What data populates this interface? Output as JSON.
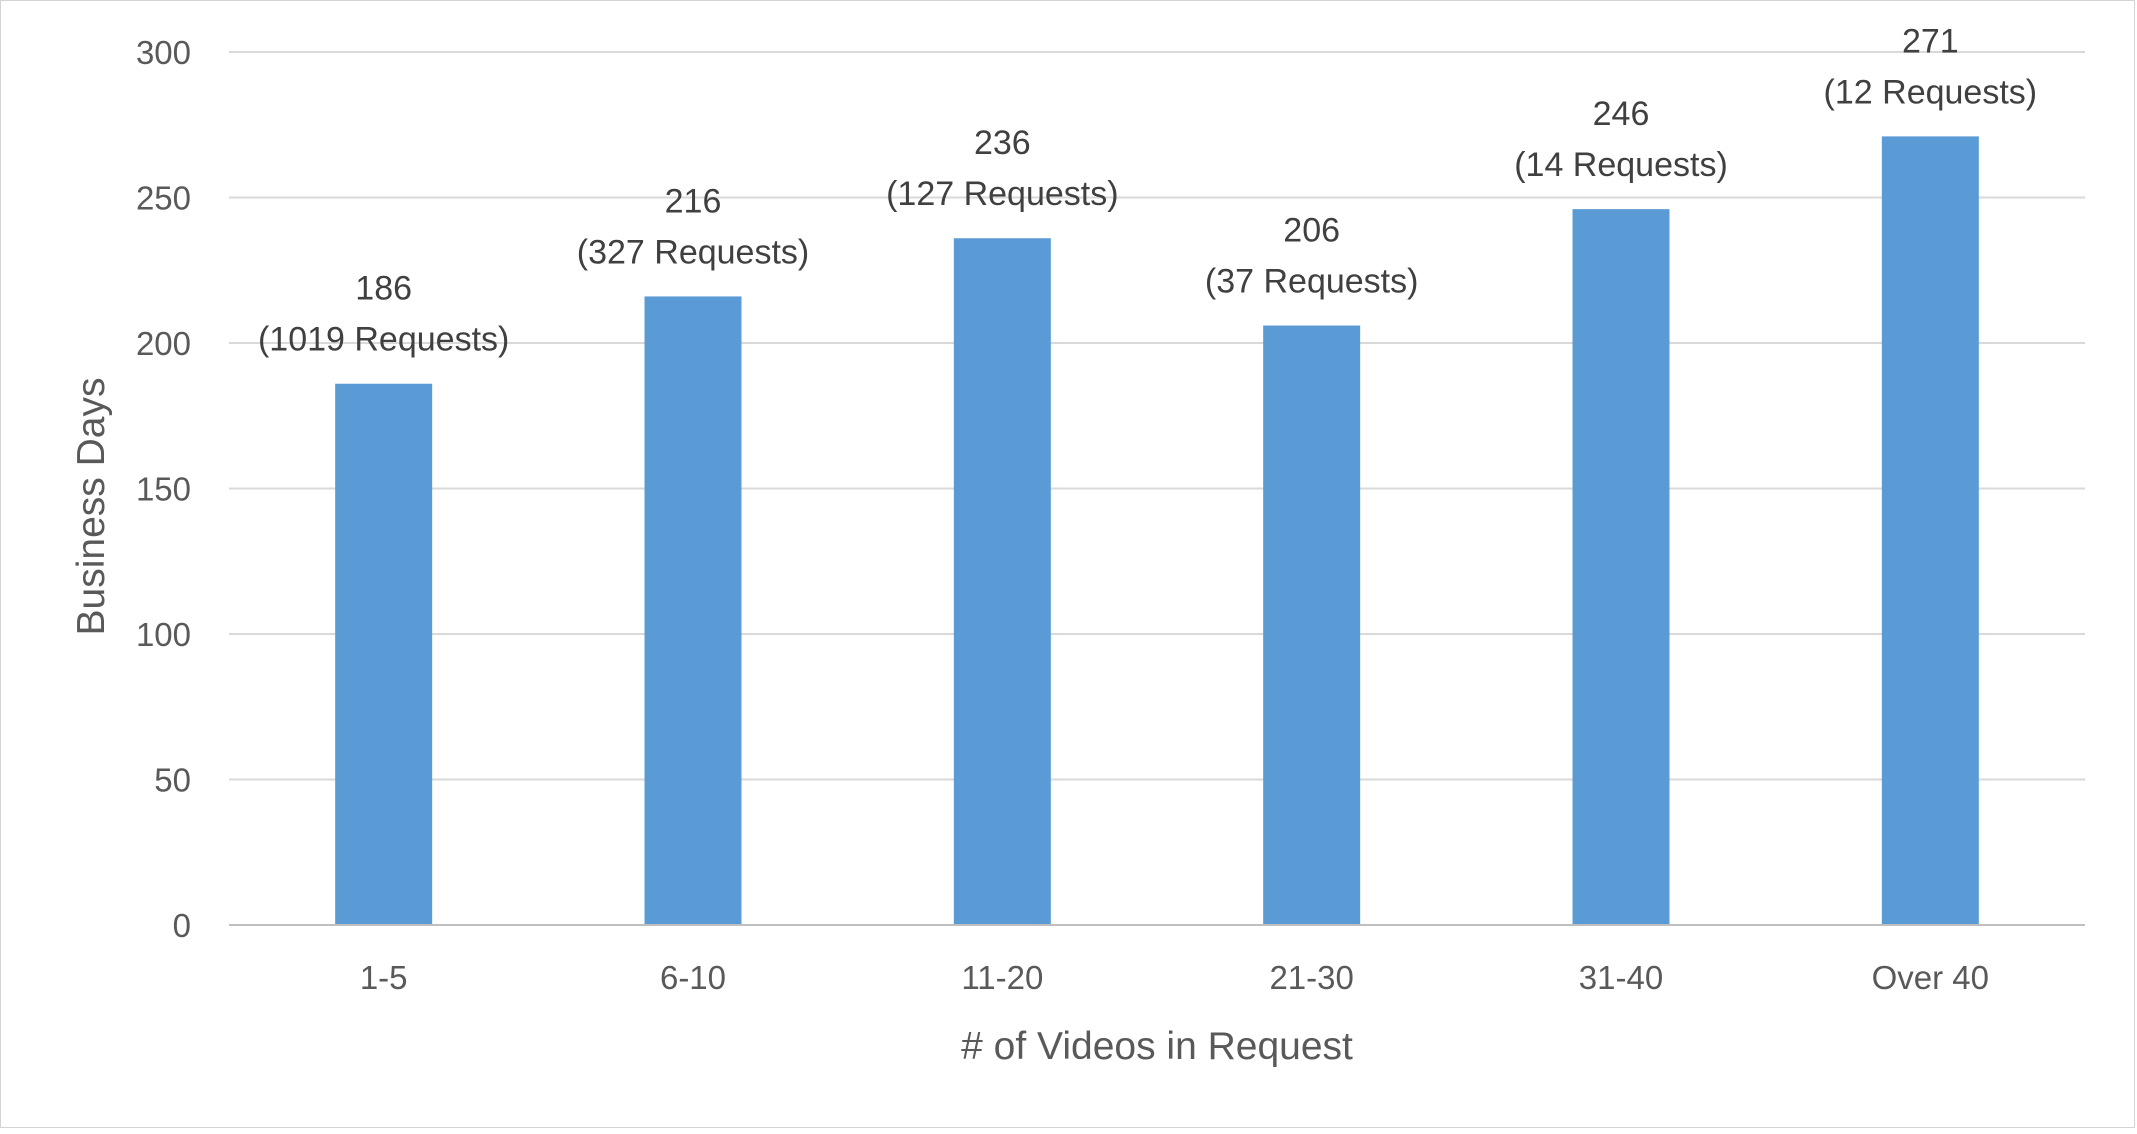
{
  "chart_data": {
    "type": "bar",
    "title": "",
    "xlabel": "# of Videos in Request",
    "ylabel": "Business Days",
    "categories": [
      "1-5",
      "6-10",
      "11-20",
      "21-30",
      "31-40",
      "Over 40"
    ],
    "values": [
      186,
      216,
      236,
      206,
      246,
      271
    ],
    "value_labels": [
      "186",
      "216",
      "236",
      "206",
      "246",
      "271"
    ],
    "request_labels": [
      "(1019 Requests)",
      "(327 Requests)",
      "(127 Requests)",
      "(37 Requests)",
      "(14 Requests)",
      "(12 Requests)"
    ],
    "ylim": [
      0,
      300
    ],
    "yticks": [
      0,
      50,
      100,
      150,
      200,
      250,
      300
    ],
    "ytick_labels": [
      "0",
      "50",
      "100",
      "150",
      "200",
      "250",
      "300"
    ],
    "grid": true,
    "legend": "none",
    "bar_color": "#5b9bd5"
  }
}
